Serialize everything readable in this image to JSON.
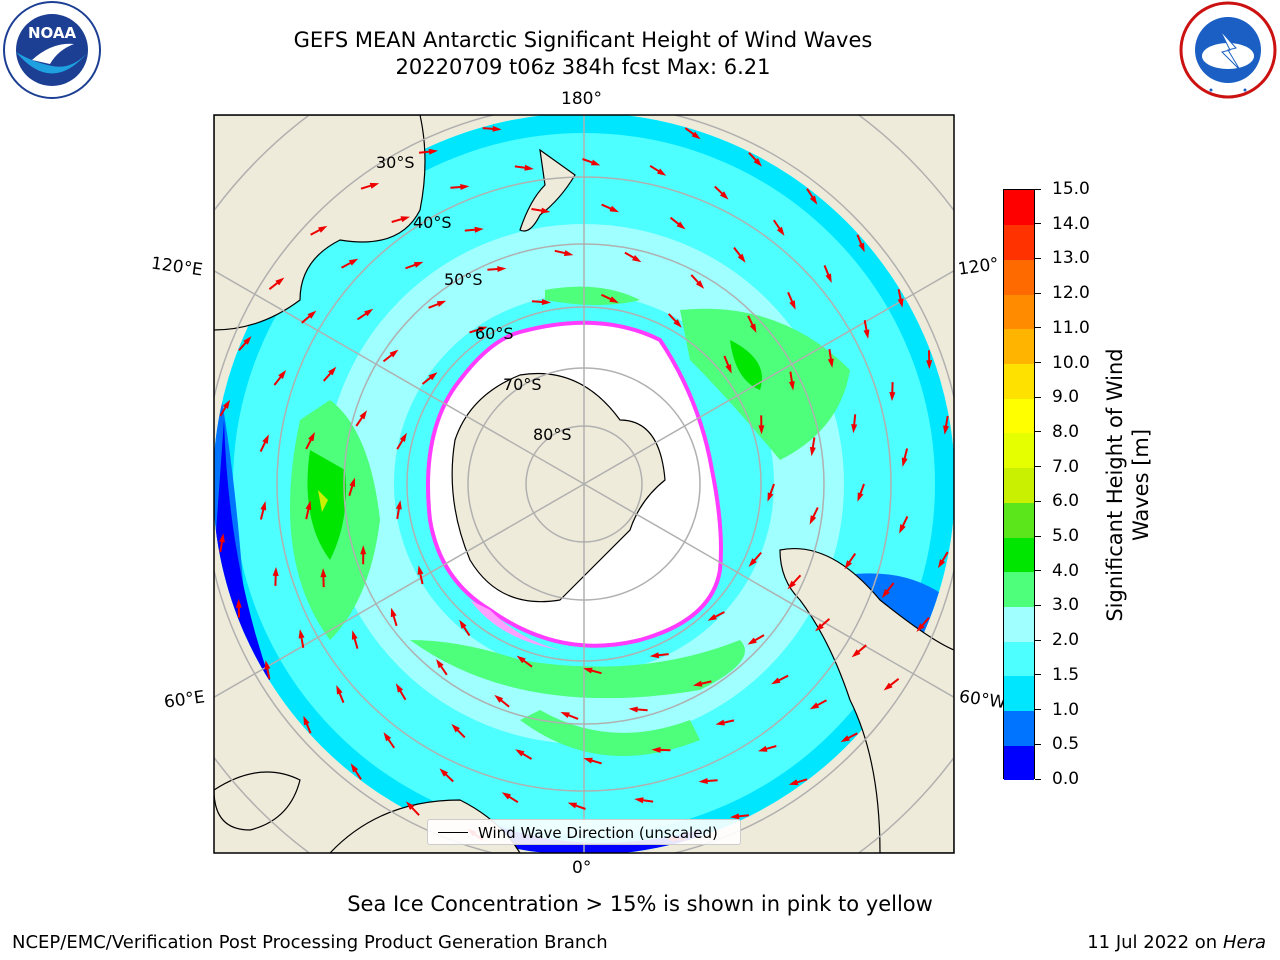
{
  "title": {
    "line1": "GEFS MEAN Antarctic Significant Height of Wind Waves",
    "line2": "20220709 t06z 384h fcst   Max: 6.21"
  },
  "logos": {
    "left": {
      "icon": "noaa-logo-icon",
      "text": "NOAA",
      "ring_text": "NATIONAL OCEANIC AND ATMOSPHERIC ADMINISTRATION · U.S. DEPARTMENT OF COMMERCE"
    },
    "right": {
      "icon": "nws-logo-icon",
      "ring_text": "NATIONAL WEATHER SERVICE"
    }
  },
  "map": {
    "projection": "south-polar-stereographic",
    "longitude_labels": [
      "180°",
      "120°E",
      "120°",
      "60°E",
      "60°W",
      "0°"
    ],
    "latitude_labels": [
      "30°S",
      "40°S",
      "50°S",
      "60°S",
      "70°S",
      "80°S"
    ],
    "colors": {
      "land": "#efebda",
      "ice": "#ffffff",
      "grid": "#b0b0b0",
      "arrow": "#ee0000",
      "ice_edge": "#ff3cff"
    }
  },
  "colorbar": {
    "title_line1": "Significant Height of Wind",
    "title_line2": "Waves [m]",
    "ticks": [
      "0.0",
      "0.5",
      "1.0",
      "1.5",
      "2.0",
      "3.0",
      "4.0",
      "5.0",
      "6.0",
      "7.0",
      "8.0",
      "9.0",
      "10.0",
      "11.0",
      "12.0",
      "13.0",
      "14.0",
      "15.0"
    ],
    "colors": [
      "#0000ff",
      "#0073ff",
      "#00e6ff",
      "#4dffff",
      "#a0ffff",
      "#4dff7a",
      "#00e600",
      "#5ae61a",
      "#c8f000",
      "#e6ff00",
      "#ffff00",
      "#ffe100",
      "#ffb400",
      "#ff8c00",
      "#ff6a00",
      "#ff3200",
      "#ff0000"
    ]
  },
  "legend": {
    "label": "Wind Wave Direction (unscaled)"
  },
  "note": "Sea Ice Concentration > 15% is shown in pink to yellow",
  "footer": {
    "left": "NCEP/EMC/Verification Post Processing Product Generation Branch",
    "right_prefix": "11 Jul 2022 on ",
    "right_host": "Hera"
  }
}
